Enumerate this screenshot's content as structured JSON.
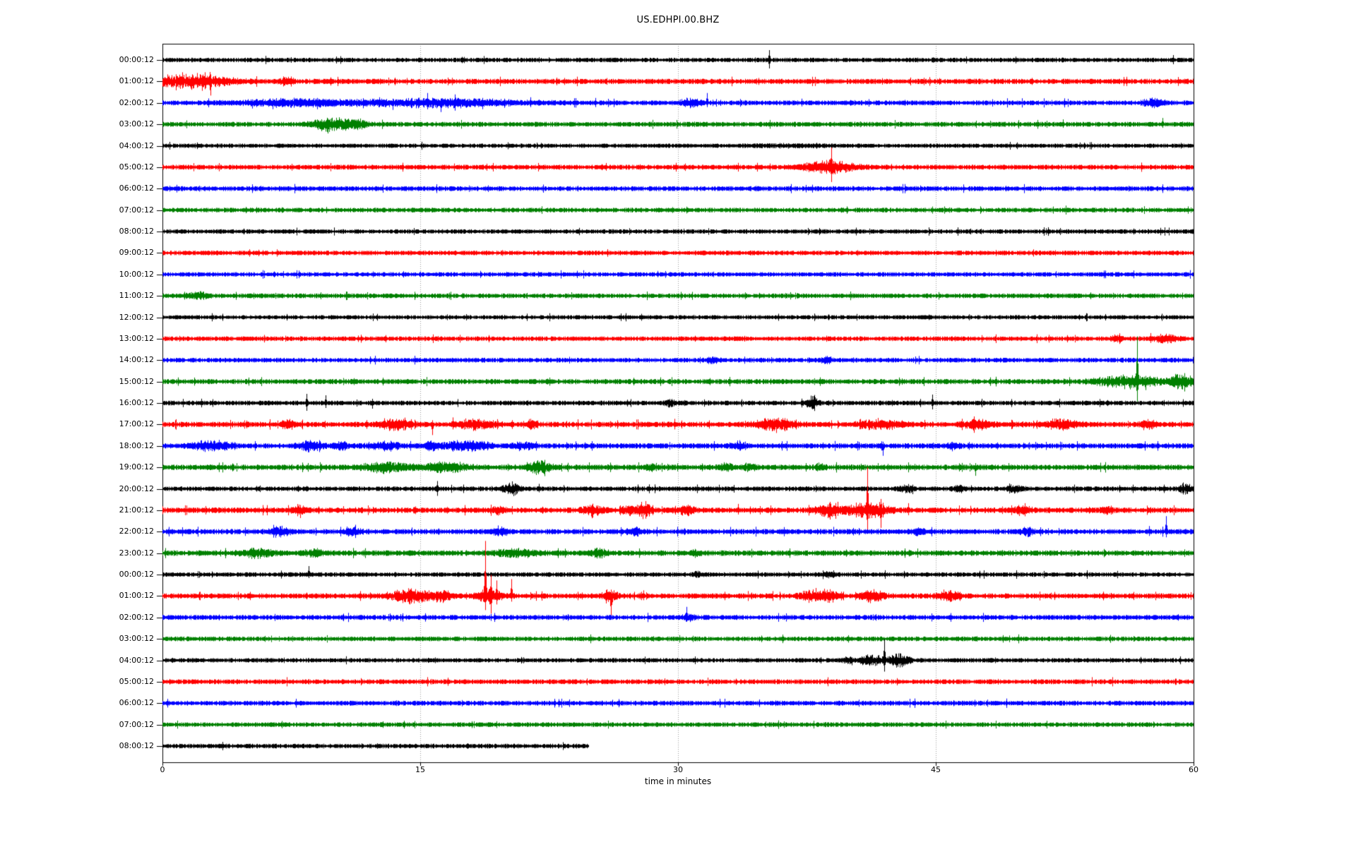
{
  "figure": {
    "title": "US.EDHPI.00.BHZ",
    "background_color": "#ffffff",
    "frame_color": "#000000",
    "gridline_color": "#999999"
  },
  "chart_data": {
    "type": "line",
    "subtype": "seismogram-dayplot",
    "title": "US.EDHPI.00.BHZ",
    "xlabel": "time in minutes",
    "ylabel": "",
    "x_axis": {
      "range": [
        0,
        60
      ],
      "ticks": [
        0,
        15,
        30,
        45,
        60
      ],
      "gridlines": [
        15,
        30,
        45
      ],
      "grid_style": "dotted"
    },
    "legend": "none",
    "trace_color_cycle": [
      "#000000",
      "#ff0000",
      "#0000ff",
      "#008000"
    ],
    "rows_note": "33 hourly traces, one per line, amplitude in pixels; m=minute, dur=burst duration (min), amp=burst half-amplitude px, up/dn=spike extents px",
    "rows": [
      {
        "label": "00:00:12",
        "color": "#000000",
        "base": 2.3,
        "rough": 0.02,
        "events": [
          {
            "m": 35.3,
            "up": 14,
            "dn": 12
          },
          {
            "m": 58.8,
            "up": 7,
            "dn": 6
          }
        ]
      },
      {
        "label": "01:00:12",
        "color": "#ff0000",
        "base": 2.7,
        "rough": 0.03,
        "events": [
          {
            "m": 1.6,
            "dur": 3.4,
            "amp": 8
          },
          {
            "m": 0.3,
            "up": 10,
            "dn": 8
          },
          {
            "m": 1.15,
            "up": 13,
            "dn": 10
          },
          {
            "m": 2.0,
            "up": 12,
            "dn": 9
          },
          {
            "m": 2.45,
            "up": 13,
            "dn": 11
          },
          {
            "m": 2.8,
            "up": 10,
            "dn": 20
          },
          {
            "m": 3.1,
            "up": 8,
            "dn": 8
          },
          {
            "m": 7.2,
            "dur": 0.6,
            "amp": 5
          }
        ]
      },
      {
        "label": "02:00:12",
        "color": "#0000ff",
        "base": 2.5,
        "rough": 0.03,
        "events": [
          {
            "m": 7.5,
            "dur": 4,
            "amp": 4.5
          },
          {
            "m": 5.2,
            "up": 5,
            "dn": 8
          },
          {
            "m": 6.4,
            "up": 6,
            "dn": 9
          },
          {
            "m": 9.0,
            "up": 7,
            "dn": 9
          },
          {
            "m": 16,
            "dur": 7,
            "amp": 5
          },
          {
            "m": 12.6,
            "up": 8,
            "dn": 6
          },
          {
            "m": 13.4,
            "up": 6,
            "dn": 10
          },
          {
            "m": 14.5,
            "up": 7,
            "dn": 7
          },
          {
            "m": 15.4,
            "up": 14,
            "dn": 9
          },
          {
            "m": 16.2,
            "up": 6,
            "dn": 13
          },
          {
            "m": 17.0,
            "up": 12,
            "dn": 11
          },
          {
            "m": 18.6,
            "up": 7,
            "dn": 9
          },
          {
            "m": 19.9,
            "up": 6,
            "dn": 7
          },
          {
            "m": 21.4,
            "up": 8,
            "dn": 6
          },
          {
            "m": 25.2,
            "up": 7,
            "dn": 6
          },
          {
            "m": 30.7,
            "dur": 0.8,
            "amp": 5
          },
          {
            "m": 31.7,
            "up": 14,
            "dn": 6
          },
          {
            "m": 37.2,
            "up": 6,
            "dn": 5
          },
          {
            "m": 57.6,
            "dur": 0.8,
            "amp": 5
          }
        ]
      },
      {
        "label": "03:00:12",
        "color": "#008000",
        "base": 2.5,
        "rough": 0.02,
        "events": [
          {
            "m": 9.8,
            "dur": 1.4,
            "amp": 10
          },
          {
            "m": 9.6,
            "up": 8,
            "dn": 13
          },
          {
            "m": 11.3,
            "dur": 0.9,
            "amp": 6
          },
          {
            "m": 52.4,
            "up": 7,
            "dn": 5
          },
          {
            "m": 58.2,
            "up": 9,
            "dn": 5
          }
        ]
      },
      {
        "label": "04:00:12",
        "color": "#000000",
        "base": 2.2,
        "rough": 0.02,
        "events": [
          {
            "m": 36.5,
            "dur": 3,
            "amp": 1.2
          },
          {
            "m": 35.9,
            "up": 4,
            "dn": 4
          }
        ]
      },
      {
        "label": "05:00:12",
        "color": "#ff0000",
        "base": 2.5,
        "rough": 0.02,
        "events": [
          {
            "m": 25.8,
            "up": 6,
            "dn": 5
          },
          {
            "m": 38.8,
            "dur": 2,
            "amp": 9
          },
          {
            "m": 38.9,
            "up": 28,
            "dn": 21
          },
          {
            "m": 39.4,
            "up": 9,
            "dn": 7
          }
        ]
      },
      {
        "label": "06:00:12",
        "color": "#0000ff",
        "base": 2.5,
        "rough": 0.02,
        "events": []
      },
      {
        "label": "07:00:12",
        "color": "#008000",
        "base": 2.4,
        "rough": 0.02,
        "events": []
      },
      {
        "label": "08:00:12",
        "color": "#000000",
        "base": 2.3,
        "rough": 0.02,
        "events": []
      },
      {
        "label": "09:00:12",
        "color": "#ff0000",
        "base": 2.4,
        "rough": 0.02,
        "events": []
      },
      {
        "label": "10:00:12",
        "color": "#0000ff",
        "base": 2.3,
        "rough": 0.02,
        "events": [
          {
            "m": 28.8,
            "up": 5,
            "dn": 4
          }
        ]
      },
      {
        "label": "11:00:12",
        "color": "#008000",
        "base": 2.4,
        "rough": 0.02,
        "events": [
          {
            "m": 2.0,
            "dur": 0.8,
            "amp": 5
          }
        ]
      },
      {
        "label": "12:00:12",
        "color": "#000000",
        "base": 2.2,
        "rough": 0.02,
        "events": []
      },
      {
        "label": "13:00:12",
        "color": "#ff0000",
        "base": 2.4,
        "rough": 0.02,
        "events": [
          {
            "m": 55.6,
            "dur": 0.5,
            "amp": 5
          },
          {
            "m": 57.5,
            "up": 8,
            "dn": 6
          },
          {
            "m": 58.4,
            "dur": 0.8,
            "amp": 6
          }
        ]
      },
      {
        "label": "14:00:12",
        "color": "#0000ff",
        "base": 2.4,
        "rough": 0.02,
        "events": [
          {
            "m": 32,
            "dur": 0.5,
            "amp": 4
          },
          {
            "m": 38.6,
            "dur": 0.5,
            "amp": 4
          }
        ]
      },
      {
        "label": "15:00:12",
        "color": "#008000",
        "base": 2.6,
        "rough": 0.02,
        "events": [
          {
            "m": 56.3,
            "dur": 2.6,
            "amp": 8
          },
          {
            "m": 56.7,
            "up": 64,
            "dn": 29
          },
          {
            "m": 57.2,
            "up": 8,
            "dn": 12
          },
          {
            "m": 59.3,
            "dur": 1.0,
            "amp": 9
          },
          {
            "m": 59.45,
            "up": 12,
            "dn": 14
          }
        ]
      },
      {
        "label": "16:00:12",
        "color": "#000000",
        "base": 2.4,
        "rough": 0.03,
        "events": [
          {
            "m": 8.4,
            "up": 13,
            "dn": 11
          },
          {
            "m": 9.5,
            "up": 11,
            "dn": 7
          },
          {
            "m": 12.2,
            "up": 6,
            "dn": 8
          },
          {
            "m": 29.5,
            "dur": 0.4,
            "amp": 4
          },
          {
            "m": 37.8,
            "dur": 0.5,
            "amp": 8
          },
          {
            "m": 37.9,
            "up": 10,
            "dn": 8
          },
          {
            "m": 44.8,
            "up": 12,
            "dn": 9
          }
        ]
      },
      {
        "label": "17:00:12",
        "color": "#ff0000",
        "base": 2.8,
        "rough": 0.05,
        "events": [
          {
            "m": 7.3,
            "dur": 0.5,
            "amp": 6
          },
          {
            "m": 13.5,
            "dur": 1.2,
            "amp": 7
          },
          {
            "m": 15.7,
            "up": 6,
            "dn": 15
          },
          {
            "m": 16.9,
            "up": 10,
            "dn": 7
          },
          {
            "m": 18.2,
            "dur": 1.5,
            "amp": 6
          },
          {
            "m": 21.5,
            "dur": 0.5,
            "amp": 5
          },
          {
            "m": 29.8,
            "up": 8,
            "dn": 7
          },
          {
            "m": 35.6,
            "dur": 1.6,
            "amp": 7
          },
          {
            "m": 36.2,
            "up": 9,
            "dn": 6
          },
          {
            "m": 41.8,
            "dur": 1.8,
            "amp": 6
          },
          {
            "m": 47.4,
            "dur": 1.2,
            "amp": 6
          },
          {
            "m": 52.3,
            "dur": 1.4,
            "amp": 6
          },
          {
            "m": 57.4,
            "dur": 0.6,
            "amp": 5
          }
        ]
      },
      {
        "label": "18:00:12",
        "color": "#0000ff",
        "base": 2.7,
        "rough": 0.04,
        "events": [
          {
            "m": 2.8,
            "dur": 1.6,
            "amp": 6
          },
          {
            "m": 8.6,
            "dur": 1.0,
            "amp": 6
          },
          {
            "m": 10.4,
            "dur": 0.6,
            "amp": 5
          },
          {
            "m": 13,
            "dur": 1.2,
            "amp": 5
          },
          {
            "m": 15.6,
            "dur": 0.5,
            "amp": 6
          },
          {
            "m": 17.6,
            "dur": 2,
            "amp": 6
          },
          {
            "m": 21,
            "dur": 0.8,
            "amp": 5
          },
          {
            "m": 33.5,
            "dur": 0.6,
            "amp": 5
          },
          {
            "m": 41.9,
            "up": 6,
            "dn": 14
          },
          {
            "m": 46,
            "dur": 0.5,
            "amp": 4
          }
        ]
      },
      {
        "label": "19:00:12",
        "color": "#008000",
        "base": 2.8,
        "rough": 0.04,
        "events": [
          {
            "m": 13,
            "dur": 2,
            "amp": 6
          },
          {
            "m": 16.5,
            "dur": 2,
            "amp": 6
          },
          {
            "m": 17,
            "up": 5,
            "dn": 8
          },
          {
            "m": 21.9,
            "dur": 0.9,
            "amp": 8
          },
          {
            "m": 22.1,
            "up": 9,
            "dn": 6
          },
          {
            "m": 28.5,
            "dur": 0.5,
            "amp": 4
          },
          {
            "m": 32.8,
            "dur": 0.6,
            "amp": 5
          },
          {
            "m": 34.2,
            "dur": 0.5,
            "amp": 5
          },
          {
            "m": 38.3,
            "dur": 0.4,
            "amp": 4
          },
          {
            "m": 47.3,
            "up": 6,
            "dn": 12
          }
        ]
      },
      {
        "label": "20:00:12",
        "color": "#000000",
        "base": 2.4,
        "rough": 0.03,
        "events": [
          {
            "m": 16,
            "up": 11,
            "dn": 10
          },
          {
            "m": 17.5,
            "up": 6,
            "dn": 6
          },
          {
            "m": 20.3,
            "dur": 0.7,
            "amp": 8
          },
          {
            "m": 21.9,
            "up": 7,
            "dn": 5
          },
          {
            "m": 43.3,
            "dur": 0.6,
            "amp": 5
          },
          {
            "m": 46.4,
            "dur": 0.5,
            "amp": 4
          },
          {
            "m": 49.6,
            "dur": 0.6,
            "amp": 5
          },
          {
            "m": 59.4,
            "up": 9,
            "dn": 8
          },
          {
            "m": 59.5,
            "dur": 0.5,
            "amp": 6
          }
        ]
      },
      {
        "label": "21:00:12",
        "color": "#ff0000",
        "base": 2.8,
        "rough": 0.05,
        "events": [
          {
            "m": 8,
            "dur": 0.5,
            "amp": 5
          },
          {
            "m": 19.5,
            "dur": 0.6,
            "amp": 5
          },
          {
            "m": 25,
            "dur": 0.8,
            "amp": 7
          },
          {
            "m": 27.1,
            "dur": 0.5,
            "amp": 6
          },
          {
            "m": 28,
            "dur": 0.7,
            "amp": 11
          },
          {
            "m": 28.1,
            "up": 13,
            "dn": 11
          },
          {
            "m": 30.5,
            "dur": 0.8,
            "amp": 6
          },
          {
            "m": 33.5,
            "up": 9,
            "dn": 6
          },
          {
            "m": 38.8,
            "dur": 1,
            "amp": 8
          },
          {
            "m": 39.3,
            "up": 12,
            "dn": 8
          },
          {
            "m": 41,
            "dur": 1.6,
            "amp": 11
          },
          {
            "m": 41.0,
            "up": 61,
            "dn": 30
          },
          {
            "m": 41.8,
            "up": 16,
            "dn": 25
          },
          {
            "m": 43.4,
            "up": 10,
            "dn": 7
          },
          {
            "m": 50,
            "dur": 0.8,
            "amp": 5
          },
          {
            "m": 55,
            "dur": 0.5,
            "amp": 4
          }
        ]
      },
      {
        "label": "22:00:12",
        "color": "#0000ff",
        "base": 2.7,
        "rough": 0.03,
        "events": [
          {
            "m": 6.8,
            "dur": 0.8,
            "amp": 6
          },
          {
            "m": 11,
            "dur": 0.7,
            "amp": 5
          },
          {
            "m": 19.7,
            "dur": 0.6,
            "amp": 5
          },
          {
            "m": 27.5,
            "dur": 0.6,
            "amp": 5
          },
          {
            "m": 44,
            "dur": 0.5,
            "amp": 4
          },
          {
            "m": 50.3,
            "dur": 0.5,
            "amp": 5
          },
          {
            "m": 57.4,
            "up": 8,
            "dn": 6
          },
          {
            "m": 58.4,
            "up": 22,
            "dn": 8
          }
        ]
      },
      {
        "label": "23:00:12",
        "color": "#008000",
        "base": 2.8,
        "rough": 0.03,
        "events": [
          {
            "m": 5.5,
            "dur": 1.4,
            "amp": 6
          },
          {
            "m": 8.8,
            "dur": 0.8,
            "amp": 4
          },
          {
            "m": 20.6,
            "dur": 1.6,
            "amp": 5
          },
          {
            "m": 25.4,
            "dur": 0.7,
            "amp": 5
          },
          {
            "m": 31,
            "dur": 0.4,
            "amp": 4
          }
        ]
      },
      {
        "label": "00:00:12",
        "color": "#000000",
        "base": 2.3,
        "rough": 0.02,
        "events": [
          {
            "m": 8.5,
            "up": 12,
            "dn": 5
          },
          {
            "m": 31.2,
            "dur": 0.4,
            "amp": 4
          },
          {
            "m": 38.8,
            "dur": 0.5,
            "amp": 5
          }
        ]
      },
      {
        "label": "01:00:12",
        "color": "#ff0000",
        "base": 2.7,
        "rough": 0.04,
        "events": [
          {
            "m": 14.4,
            "dur": 1.6,
            "amp": 9
          },
          {
            "m": 14.3,
            "up": 11,
            "dn": 8
          },
          {
            "m": 16.3,
            "dur": 0.8,
            "amp": 7
          },
          {
            "m": 19,
            "dur": 1,
            "amp": 10
          },
          {
            "m": 18.8,
            "up": 78,
            "dn": 20
          },
          {
            "m": 19.1,
            "up": 30,
            "dn": 25
          },
          {
            "m": 19.45,
            "up": 22,
            "dn": 12
          },
          {
            "m": 20.3,
            "up": 24,
            "dn": 8
          },
          {
            "m": 26,
            "dur": 0.6,
            "amp": 8
          },
          {
            "m": 26.1,
            "up": 9,
            "dn": 32
          },
          {
            "m": 28,
            "up": 8,
            "dn": 6
          },
          {
            "m": 37.8,
            "dur": 1,
            "amp": 7
          },
          {
            "m": 38.8,
            "dur": 0.6,
            "amp": 7
          },
          {
            "m": 41.3,
            "dur": 0.9,
            "amp": 8
          },
          {
            "m": 45.7,
            "dur": 0.9,
            "amp": 7
          }
        ]
      },
      {
        "label": "02:00:12",
        "color": "#0000ff",
        "base": 2.5,
        "rough": 0.02,
        "events": [
          {
            "m": 30.5,
            "up": 15,
            "dn": 6
          },
          {
            "m": 30.6,
            "dur": 0.5,
            "amp": 4
          }
        ]
      },
      {
        "label": "03:00:12",
        "color": "#008000",
        "base": 2.4,
        "rough": 0.02,
        "events": []
      },
      {
        "label": "04:00:12",
        "color": "#000000",
        "base": 2.3,
        "rough": 0.02,
        "events": [
          {
            "m": 39.9,
            "dur": 0.4,
            "amp": 4
          },
          {
            "m": 40.1,
            "up": 4,
            "dn": 7
          },
          {
            "m": 41.2,
            "dur": 0.9,
            "amp": 7
          },
          {
            "m": 42.0,
            "up": 30,
            "dn": 16
          },
          {
            "m": 42.8,
            "dur": 0.9,
            "amp": 8
          },
          {
            "m": 42.9,
            "up": 6,
            "dn": 10
          }
        ]
      },
      {
        "label": "05:00:12",
        "color": "#ff0000",
        "base": 2.5,
        "rough": 0.02,
        "events": []
      },
      {
        "label": "06:00:12",
        "color": "#0000ff",
        "base": 2.5,
        "rough": 0.02,
        "events": []
      },
      {
        "label": "07:00:12",
        "color": "#008000",
        "base": 2.4,
        "rough": 0.02,
        "events": []
      },
      {
        "label": "08:00:12",
        "color": "#000000",
        "base": 2.4,
        "rough": 0.02,
        "end": 24.8,
        "events": []
      }
    ]
  }
}
